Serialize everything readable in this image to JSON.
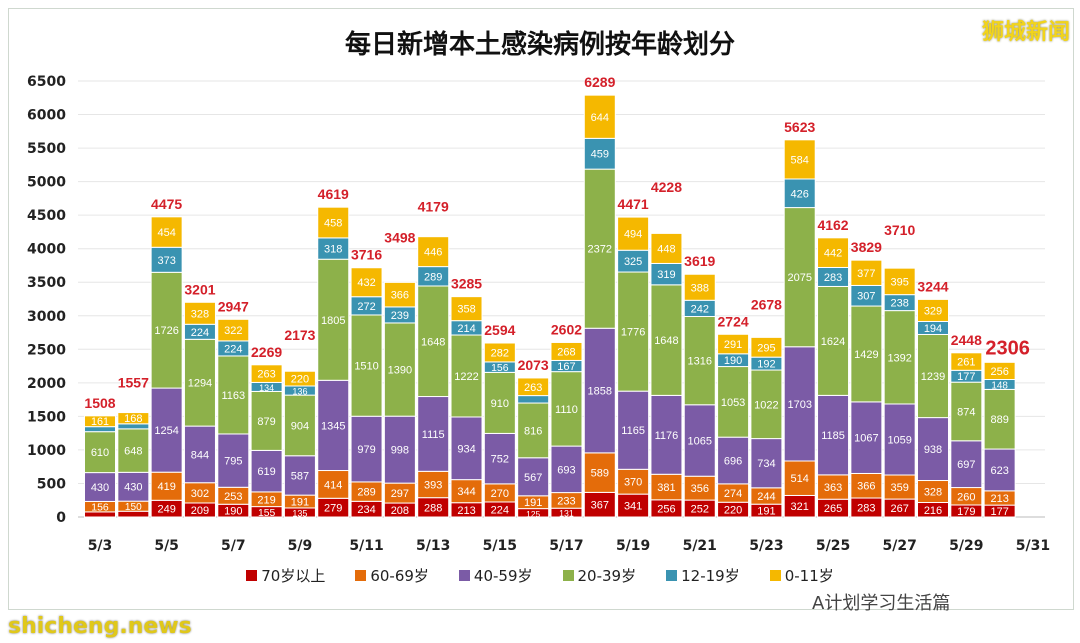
{
  "chart_data": {
    "type": "bar",
    "stacked": true,
    "title": "每日新增本土感染病例按年龄划分",
    "ylim": [
      0,
      6500
    ],
    "yticks": [
      0,
      500,
      1000,
      1500,
      2000,
      2500,
      3000,
      3500,
      4000,
      4500,
      5000,
      5500,
      6000,
      6500
    ],
    "grid": true,
    "legend_position": "bottom",
    "xtick_labels": [
      "5/3",
      "5/5",
      "5/7",
      "5/9",
      "5/11",
      "5/13",
      "5/15",
      "5/17",
      "5/19",
      "5/21",
      "5/23",
      "5/25",
      "5/27",
      "5/29",
      "5/31"
    ],
    "categories": [
      "5/3",
      "5/4",
      "5/5",
      "5/6",
      "5/7",
      "5/8",
      "5/9",
      "5/10",
      "5/11",
      "5/12",
      "5/13",
      "5/14",
      "5/15",
      "5/16",
      "5/17",
      "5/18",
      "5/19",
      "5/20",
      "5/21",
      "5/22",
      "5/23",
      "5/24",
      "5/25",
      "5/26",
      "5/27",
      "5/28",
      "5/29",
      "5/30"
    ],
    "totals": [
      1508,
      1557,
      4475,
      3201,
      2947,
      2269,
      2173,
      4619,
      3716,
      3498,
      4179,
      3285,
      2594,
      2073,
      2602,
      6289,
      4471,
      4228,
      3619,
      2724,
      2678,
      5623,
      4162,
      3829,
      3710,
      3244,
      2448,
      2306
    ],
    "series": [
      {
        "name": "70岁以上",
        "color": "#c00000",
        "values": [
          76,
          86,
          249,
          209,
          190,
          155,
          135,
          279,
          234,
          208,
          288,
          213,
          224,
          125,
          131,
          367,
          341,
          256,
          252,
          220,
          191,
          321,
          265,
          283,
          267,
          216,
          179,
          177
        ]
      },
      {
        "name": "60-69岁",
        "color": "#e46c0a",
        "values": [
          156,
          150,
          419,
          302,
          253,
          219,
          191,
          414,
          289,
          297,
          393,
          344,
          270,
          191,
          233,
          589,
          370,
          381,
          356,
          274,
          244,
          514,
          363,
          366,
          359,
          328,
          260,
          213
        ]
      },
      {
        "name": "40-59岁",
        "color": "#7b5ba6",
        "values": [
          430,
          430,
          1254,
          844,
          795,
          619,
          587,
          1345,
          979,
          998,
          1115,
          934,
          752,
          567,
          693,
          1858,
          1165,
          1176,
          1065,
          696,
          734,
          1703,
          1185,
          1067,
          1059,
          938,
          697,
          623
        ]
      },
      {
        "name": "20-39岁",
        "color": "#8db14a",
        "values": [
          610,
          648,
          1726,
          1294,
          1163,
          879,
          904,
          1805,
          1510,
          1390,
          1648,
          1222,
          910,
          816,
          1110,
          2372,
          1776,
          1648,
          1316,
          1053,
          1022,
          2075,
          1624,
          1429,
          1392,
          1239,
          874,
          889
        ]
      },
      {
        "name": "12-19岁",
        "color": "#3a93b1",
        "values": [
          75,
          75,
          373,
          224,
          224,
          134,
          136,
          318,
          272,
          239,
          289,
          214,
          156,
          111,
          167,
          459,
          325,
          319,
          242,
          190,
          192,
          426,
          283,
          307,
          238,
          194,
          177,
          148
        ]
      },
      {
        "name": "0-11岁",
        "color": "#f5b800",
        "values": [
          161,
          168,
          454,
          328,
          322,
          263,
          220,
          458,
          432,
          366,
          446,
          358,
          282,
          263,
          268,
          644,
          494,
          448,
          388,
          291,
          295,
          584,
          442,
          377,
          395,
          329,
          261,
          256
        ]
      }
    ]
  },
  "watermarks": {
    "top_right": "狮城新闻",
    "bottom_left": "shicheng.news",
    "bottom_right": "A计划学习生活篇"
  }
}
